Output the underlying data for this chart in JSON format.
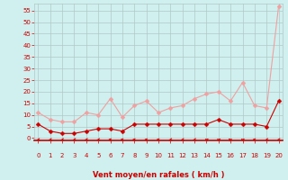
{
  "x": [
    0,
    1,
    2,
    3,
    4,
    5,
    6,
    7,
    8,
    9,
    10,
    11,
    12,
    13,
    14,
    15,
    16,
    17,
    18,
    19,
    20
  ],
  "wind_mean": [
    6,
    3,
    2,
    2,
    3,
    4,
    4,
    3,
    6,
    6,
    6,
    6,
    6,
    6,
    6,
    8,
    6,
    6,
    6,
    5,
    16
  ],
  "wind_gust": [
    11,
    8,
    7,
    7,
    11,
    10,
    17,
    9,
    14,
    16,
    11,
    13,
    14,
    17,
    19,
    20,
    16,
    24,
    14,
    13,
    57
  ],
  "xlabel": "Vent moyen/en rafales ( km/h )",
  "yticks": [
    0,
    5,
    10,
    15,
    20,
    25,
    30,
    35,
    40,
    45,
    50,
    55
  ],
  "xticks": [
    0,
    1,
    2,
    3,
    4,
    5,
    6,
    7,
    8,
    9,
    10,
    11,
    12,
    13,
    14,
    15,
    16,
    17,
    18,
    19,
    20
  ],
  "ylim": [
    -1,
    58
  ],
  "xlim": [
    -0.3,
    20.3
  ],
  "bg_color": "#cff0ee",
  "grid_color": "#b0c8c8",
  "line_mean_color": "#cc0000",
  "line_gust_color": "#f0a0a0",
  "marker_size": 2.5,
  "line_width": 0.8,
  "xlabel_color": "#cc0000",
  "tick_color": "#cc0000",
  "arrow_color": "#cc0000",
  "arrow_angles": [
    225,
    225,
    225,
    225,
    225,
    225,
    270,
    270,
    270,
    270,
    270,
    225,
    225,
    225,
    315,
    315,
    45,
    315,
    270,
    225,
    225
  ]
}
